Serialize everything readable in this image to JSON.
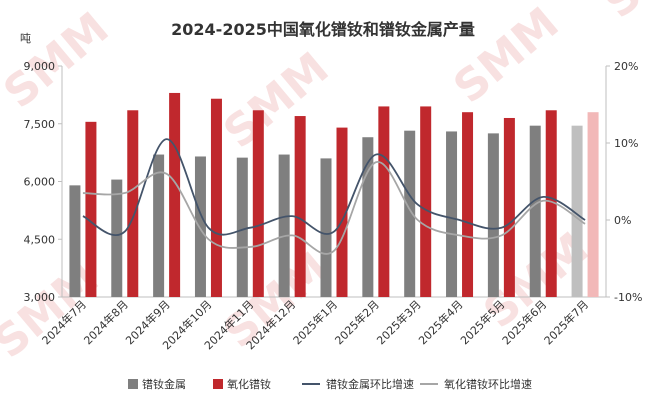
{
  "chart_data": {
    "type": "bar",
    "title": "2024-2025中国氧化镨钕和镨钕金属产量",
    "ylabel": "吨",
    "ylim": [
      3000,
      9000
    ],
    "y_ticks": [
      "3,000",
      "4,500",
      "6,000",
      "7,500",
      "9,000"
    ],
    "y2lim": [
      -10,
      20
    ],
    "y2_ticks": [
      "-10%",
      "0%",
      "10%",
      "20%"
    ],
    "categories": [
      "2024年7月",
      "2024年8月",
      "2024年9月",
      "2024年10月",
      "2024年11月",
      "2024年12月",
      "2025年1月",
      "2025年2月",
      "2025年3月",
      "2025年4月",
      "2025年5月",
      "2025年6月",
      "2025年7月"
    ],
    "forecast_last": true,
    "grid": false,
    "legend_position": "bottom",
    "series": [
      {
        "name": "镨钕金属",
        "kind": "bar",
        "axis": "left",
        "color": "#7f7f7f",
        "forecast_color": "#bfbfbf",
        "values": [
          5900,
          6050,
          6700,
          6650,
          6620,
          6700,
          6600,
          7150,
          7320,
          7300,
          7250,
          7450,
          7450
        ]
      },
      {
        "name": "氧化镨钕",
        "kind": "bar",
        "axis": "left",
        "color": "#c0282d",
        "forecast_color": "#f2b8b8",
        "values": [
          7550,
          7850,
          8300,
          8150,
          7850,
          7700,
          7400,
          7950,
          7950,
          7800,
          7650,
          7850,
          7800
        ]
      },
      {
        "name": "镨钕金属环比增速",
        "kind": "line",
        "axis": "right",
        "color": "#44546a",
        "values": [
          0.5,
          -1.5,
          10.5,
          -1,
          -1,
          0.5,
          -1.5,
          8.5,
          2,
          0,
          -1,
          3,
          0
        ]
      },
      {
        "name": "氧化镨钕环比增速",
        "kind": "line",
        "axis": "right",
        "color": "#a6a6a6",
        "values": [
          3.5,
          3.5,
          6,
          -2.5,
          -3.5,
          -2,
          -4,
          7.5,
          0,
          -2,
          -2,
          2.5,
          -0.5
        ]
      }
    ],
    "watermark": "SMM"
  }
}
